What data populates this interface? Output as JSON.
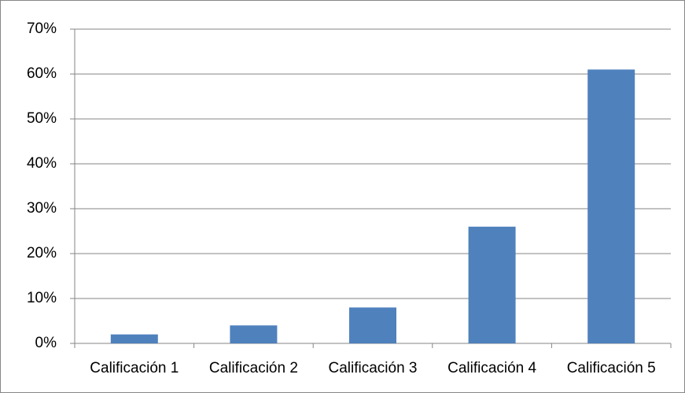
{
  "chart_data": {
    "type": "bar",
    "categories": [
      "Calificación 1",
      "Calificación 2",
      "Calificación 3",
      "Calificación 4",
      "Calificación 5"
    ],
    "values": [
      2,
      4,
      8,
      26,
      61
    ],
    "color": "#4f81bd",
    "ylim": [
      0,
      70
    ],
    "yticks": [
      {
        "value": 0,
        "label": "0%"
      },
      {
        "value": 10,
        "label": "10%"
      },
      {
        "value": 20,
        "label": "20%"
      },
      {
        "value": 30,
        "label": "30%"
      },
      {
        "value": 40,
        "label": "40%"
      },
      {
        "value": 50,
        "label": "50%"
      },
      {
        "value": 60,
        "label": "60%"
      },
      {
        "value": 70,
        "label": "70%"
      }
    ],
    "grid": true
  }
}
